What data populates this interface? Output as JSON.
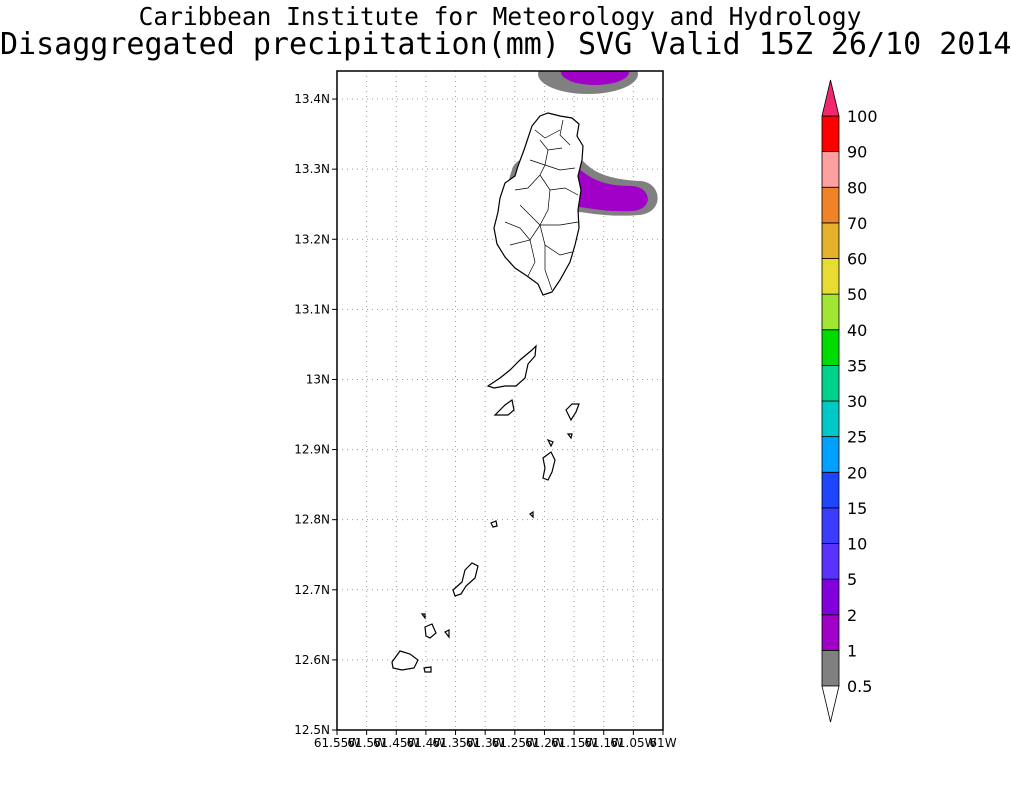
{
  "header": {
    "title_line1": "Caribbean Institute for Meteorology and Hydrology",
    "title_line2": "Disaggregated precipitation(mm) SVG Valid 15Z 26/10 2014"
  },
  "map": {
    "lon_range": [
      -61.55,
      -61.0
    ],
    "lat_range": [
      12.5,
      13.44
    ],
    "lat_ticks": [
      {
        "value": 12.5,
        "label": "12.5N"
      },
      {
        "value": 12.6,
        "label": "12.6N"
      },
      {
        "value": 12.7,
        "label": "12.7N"
      },
      {
        "value": 12.8,
        "label": "12.8N"
      },
      {
        "value": 12.9,
        "label": "12.9N"
      },
      {
        "value": 13.0,
        "label": "13N"
      },
      {
        "value": 13.1,
        "label": "13.1N"
      },
      {
        "value": 13.2,
        "label": "13.2N"
      },
      {
        "value": 13.3,
        "label": "13.3N"
      },
      {
        "value": 13.4,
        "label": "13.4N"
      }
    ],
    "lon_ticks": [
      {
        "value": -61.55,
        "label": "61.55W"
      },
      {
        "value": -61.5,
        "label": "61.5W"
      },
      {
        "value": -61.45,
        "label": "61.45W"
      },
      {
        "value": -61.4,
        "label": "61.4W"
      },
      {
        "value": -61.35,
        "label": "61.35W"
      },
      {
        "value": -61.3,
        "label": "61.3W"
      },
      {
        "value": -61.25,
        "label": "61.25W"
      },
      {
        "value": -61.2,
        "label": "61.2W"
      },
      {
        "value": -61.15,
        "label": "61.15W"
      },
      {
        "value": -61.1,
        "label": "61.1W"
      },
      {
        "value": -61.05,
        "label": "61.05W"
      },
      {
        "value": -61.0,
        "label": "61W"
      }
    ],
    "gridlines": true
  },
  "legend": {
    "levels": [
      {
        "label": "0.5",
        "color": "#808080"
      },
      {
        "label": "1",
        "color": "#a000c8"
      },
      {
        "label": "2",
        "color": "#8200dc"
      },
      {
        "label": "5",
        "color": "#5a32ff"
      },
      {
        "label": "10",
        "color": "#3c3cff"
      },
      {
        "label": "15",
        "color": "#1e46ff"
      },
      {
        "label": "20",
        "color": "#00a0ff"
      },
      {
        "label": "25",
        "color": "#00c8c8"
      },
      {
        "label": "30",
        "color": "#00d28c"
      },
      {
        "label": "35",
        "color": "#00dc00"
      },
      {
        "label": "40",
        "color": "#a0e632"
      },
      {
        "label": "50",
        "color": "#e6dc32"
      },
      {
        "label": "60",
        "color": "#e6af2d"
      },
      {
        "label": "70",
        "color": "#f08228"
      },
      {
        "label": "80",
        "color": "#ffa0a0"
      },
      {
        "label": "90",
        "color": "#ff0000"
      },
      {
        "label": "100",
        "color": "#f03c3c"
      }
    ],
    "over_color": "#f0286e",
    "under_color": "#ffffff"
  }
}
